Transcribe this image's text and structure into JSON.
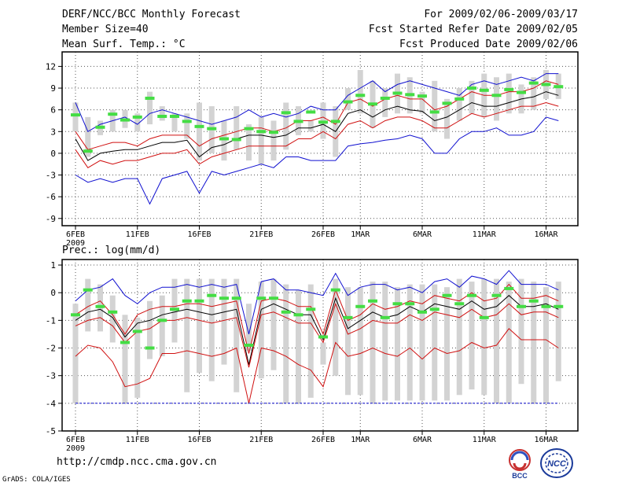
{
  "header": {
    "title": "DERF/NCC/BCC Monthly Forecast",
    "member_size": "Member Size=40",
    "variable": "Mean Surf. Temp.: °C",
    "forecast_for": "For 2009/02/06-2009/03/17",
    "started_refer": "Fcst Started Refer Date 2009/02/05",
    "produced": "Fcst Produced Date 2009/02/06"
  },
  "footer": {
    "url": "http://cmdp.ncc.cma.gov.cn",
    "credit": "GrADS: COLA/IGES"
  },
  "logos": {
    "left": "BCC",
    "right": "NCC"
  },
  "colors": {
    "box": "#d3d3d3",
    "obs": "#44dd44",
    "blue": "#1010d0",
    "red": "#d01010",
    "black": "#000000"
  },
  "chart_data": [
    {
      "type": "line",
      "title": "Mean Surf. Temp.: °C",
      "x_days": 40,
      "xtick_labels": [
        "6FEB",
        "11FEB",
        "16FEB",
        "21FEB",
        "26FEB",
        "1MAR",
        "6MAR",
        "11MAR",
        "16MAR"
      ],
      "xtick_days": [
        0,
        5,
        10,
        15,
        20,
        23,
        28,
        33,
        38
      ],
      "year_label": "2009",
      "ylim": [
        -10,
        14
      ],
      "yticks": [
        -9,
        -6,
        -3,
        0,
        3,
        6,
        9,
        12
      ],
      "ytick_labels": [
        "-9",
        "-6",
        "-3",
        "0",
        "3",
        "6",
        "9",
        "12"
      ],
      "series": [
        {
          "name": "max",
          "color": "blue",
          "values": [
            7.0,
            3.0,
            4.0,
            4.5,
            5.0,
            4.0,
            5.5,
            6.0,
            5.5,
            5.0,
            4.5,
            4.0,
            4.5,
            5.0,
            6.0,
            5.0,
            5.5,
            5.0,
            5.5,
            6.5,
            6.0,
            6.0,
            8.0,
            9.0,
            10.0,
            8.5,
            9.5,
            10.0,
            9.5,
            9.0,
            8.5,
            8.0,
            9.5,
            10.0,
            9.5,
            10.0,
            10.5,
            10.0,
            11.0,
            11.0
          ]
        },
        {
          "name": "upper",
          "color": "red",
          "values": [
            3.0,
            0.5,
            1.0,
            1.5,
            1.5,
            1.0,
            2.0,
            2.5,
            2.5,
            2.5,
            1.0,
            2.0,
            2.5,
            3.0,
            3.5,
            3.5,
            3.0,
            3.5,
            4.5,
            4.5,
            5.0,
            4.0,
            7.0,
            7.5,
            6.5,
            7.5,
            8.0,
            7.5,
            7.5,
            6.0,
            6.5,
            7.5,
            8.5,
            8.0,
            8.0,
            8.5,
            8.5,
            9.0,
            10.0,
            9.5
          ]
        },
        {
          "name": "mean",
          "color": "black",
          "values": [
            2.0,
            -1.0,
            0.0,
            0.3,
            0.5,
            0.5,
            1.0,
            1.5,
            1.5,
            1.8,
            -0.5,
            0.8,
            1.2,
            2.0,
            2.5,
            2.5,
            2.2,
            2.5,
            3.5,
            3.5,
            4.0,
            3.0,
            5.5,
            6.0,
            5.0,
            6.0,
            6.5,
            6.0,
            5.8,
            4.5,
            5.0,
            6.0,
            7.0,
            6.5,
            6.5,
            7.0,
            7.5,
            7.8,
            8.5,
            8.0
          ]
        },
        {
          "name": "lower",
          "color": "red",
          "values": [
            0.5,
            -2.0,
            -1.0,
            -1.5,
            -1.0,
            -1.0,
            -0.5,
            0.0,
            0.0,
            0.5,
            -1.5,
            -0.5,
            0.0,
            0.5,
            1.0,
            1.0,
            1.0,
            1.0,
            2.0,
            2.0,
            3.0,
            2.0,
            4.0,
            4.5,
            3.5,
            4.5,
            5.0,
            5.0,
            4.5,
            3.5,
            3.5,
            4.5,
            5.5,
            5.0,
            5.5,
            6.0,
            6.5,
            6.5,
            7.0,
            6.5
          ]
        },
        {
          "name": "min",
          "color": "blue",
          "values": [
            -3.0,
            -4.0,
            -3.5,
            -4.0,
            -3.5,
            -3.5,
            -7.0,
            -3.5,
            -3.0,
            -2.5,
            -5.5,
            -2.5,
            -3.0,
            -2.5,
            -2.0,
            -1.5,
            -2.0,
            -0.5,
            -0.5,
            -1.0,
            -1.0,
            -1.0,
            1.0,
            1.3,
            1.5,
            1.8,
            2.0,
            2.5,
            2.0,
            0.0,
            0.0,
            2.0,
            3.0,
            3.0,
            3.5,
            2.5,
            2.5,
            3.0,
            5.0,
            4.5
          ]
        }
      ],
      "boxes_low": [
        3.0,
        -0.5,
        2.5,
        3.0,
        3.5,
        3.0,
        4.0,
        4.5,
        3.0,
        2.0,
        -1.0,
        0.0,
        -1.0,
        0.5,
        -1.0,
        -1.5,
        -1.0,
        0.5,
        2.5,
        3.0,
        2.0,
        -0.5,
        6.0,
        5.5,
        3.5,
        5.0,
        5.5,
        5.5,
        5.5,
        3.0,
        2.0,
        4.5,
        5.5,
        5.0,
        4.5,
        5.5,
        5.5,
        6.0,
        7.5,
        7.5
      ],
      "boxes_high": [
        7.0,
        5.0,
        4.5,
        6.0,
        6.0,
        5.5,
        8.5,
        6.5,
        5.5,
        5.5,
        7.0,
        6.5,
        4.5,
        6.5,
        4.0,
        5.0,
        4.5,
        7.0,
        6.5,
        4.5,
        7.0,
        6.5,
        9.0,
        11.5,
        10.0,
        9.0,
        11.0,
        10.5,
        8.5,
        10.0,
        7.5,
        9.0,
        10.0,
        11.0,
        10.5,
        11.0,
        9.5,
        10.5,
        11.5,
        11.0
      ],
      "obs": [
        5.3,
        0.3,
        3.6,
        5.4,
        4.6,
        5.0,
        7.6,
        5.1,
        5.1,
        4.4,
        3.7,
        3.4,
        2.0,
        1.9,
        3.4,
        3.0,
        2.9,
        5.6,
        4.4,
        5.7,
        4.3,
        4.4,
        7.1,
        8.0,
        6.8,
        7.6,
        8.3,
        8.1,
        7.9,
        5.7,
        6.9,
        7.5,
        9.0,
        8.7,
        8.0,
        8.8,
        8.4,
        9.7,
        9.5,
        9.2
      ]
    },
    {
      "type": "line",
      "title": "Prec.: log(mm/d)",
      "x_days": 40,
      "xtick_labels": [
        "6FEB",
        "11FEB",
        "16FEB",
        "21FEB",
        "26FEB",
        "1MAR",
        "6MAR",
        "11MAR",
        "16MAR"
      ],
      "xtick_days": [
        0,
        5,
        10,
        15,
        20,
        23,
        28,
        33,
        38
      ],
      "year_label": "2009",
      "ylim": [
        -5,
        1.2
      ],
      "yticks": [
        -5,
        -4,
        -3,
        -2,
        -1,
        0,
        1
      ],
      "ytick_labels": [
        "-5",
        "-4",
        "-3",
        "-2",
        "-1",
        "0",
        "1"
      ],
      "series": [
        {
          "name": "max",
          "color": "blue",
          "values": [
            -0.3,
            0.1,
            0.2,
            0.5,
            -0.1,
            -0.4,
            0.0,
            0.2,
            0.2,
            0.3,
            0.2,
            0.3,
            0.2,
            0.3,
            -1.5,
            0.4,
            0.5,
            0.1,
            0.1,
            0.0,
            -0.1,
            0.7,
            -0.1,
            0.2,
            0.3,
            0.3,
            0.1,
            0.2,
            0.0,
            0.4,
            0.5,
            0.2,
            0.6,
            0.5,
            0.3,
            0.8,
            0.3,
            0.3,
            0.3,
            0.1
          ]
        },
        {
          "name": "upper",
          "color": "red",
          "values": [
            -0.8,
            -0.5,
            -0.3,
            -0.8,
            -1.5,
            -0.8,
            -0.6,
            -0.5,
            -0.5,
            -0.4,
            -0.4,
            -0.5,
            -0.4,
            -0.3,
            -2.2,
            -0.3,
            -0.2,
            -0.3,
            -0.5,
            -0.5,
            -1.5,
            0.1,
            -1.0,
            -0.8,
            -0.4,
            -0.6,
            -0.5,
            -0.3,
            -0.4,
            -0.1,
            -0.2,
            -0.3,
            0.0,
            -0.3,
            -0.2,
            0.3,
            -0.2,
            -0.2,
            -0.1,
            -0.3
          ]
        },
        {
          "name": "mean",
          "color": "black",
          "values": [
            -1.0,
            -0.7,
            -0.6,
            -0.9,
            -1.6,
            -1.1,
            -1.0,
            -0.8,
            -0.7,
            -0.6,
            -0.7,
            -0.8,
            -0.7,
            -0.6,
            -2.6,
            -0.6,
            -0.4,
            -0.6,
            -0.8,
            -0.8,
            -1.7,
            -0.2,
            -1.3,
            -1.0,
            -0.7,
            -0.9,
            -0.8,
            -0.5,
            -0.7,
            -0.4,
            -0.5,
            -0.6,
            -0.3,
            -0.6,
            -0.5,
            -0.1,
            -0.5,
            -0.5,
            -0.4,
            -0.6
          ]
        },
        {
          "name": "lower",
          "color": "red",
          "values": [
            -1.2,
            -1.0,
            -0.9,
            -1.2,
            -1.8,
            -1.4,
            -1.3,
            -1.0,
            -1.0,
            -0.9,
            -1.0,
            -1.1,
            -1.0,
            -0.9,
            -2.7,
            -0.8,
            -0.7,
            -0.9,
            -1.1,
            -1.1,
            -1.8,
            -0.4,
            -1.5,
            -1.3,
            -1.0,
            -1.1,
            -1.1,
            -0.8,
            -1.0,
            -0.7,
            -0.8,
            -0.9,
            -0.6,
            -0.9,
            -0.8,
            -0.4,
            -0.8,
            -0.7,
            -0.7,
            -0.9
          ]
        },
        {
          "name": "min",
          "color": "red",
          "values": [
            -2.3,
            -1.9,
            -2.0,
            -2.5,
            -3.4,
            -3.3,
            -3.1,
            -2.2,
            -2.2,
            -2.1,
            -2.2,
            -2.3,
            -2.2,
            -2.0,
            -4.0,
            -2.0,
            -2.1,
            -2.3,
            -2.6,
            -2.8,
            -3.4,
            -1.8,
            -2.3,
            -2.2,
            -2.0,
            -2.2,
            -2.3,
            -2.0,
            -2.4,
            -2.0,
            -2.2,
            -2.1,
            -1.8,
            -2.0,
            -1.9,
            -1.3,
            -1.7,
            -1.7,
            -1.7,
            -2.0
          ]
        },
        {
          "name": "floor",
          "color": "blue",
          "dashed": true,
          "values": [
            -4,
            -4,
            -4,
            -4,
            -4,
            -4,
            -4,
            -4,
            -4,
            -4,
            -4,
            -4,
            -4,
            -4,
            -4,
            -4,
            -4,
            -4,
            -4,
            -4,
            -4,
            -4,
            -4,
            -4,
            -4,
            -4,
            -4,
            -4,
            -4,
            -4,
            -4,
            -4,
            -4,
            -4,
            -4,
            -4,
            -4,
            -4,
            -4,
            -4
          ]
        }
      ],
      "boxes_low": [
        -4.0,
        -1.4,
        -1.4,
        -1.8,
        -4.0,
        -3.8,
        -2.4,
        -2.3,
        -1.8,
        -3.6,
        -2.9,
        -3.2,
        -2.6,
        -3.6,
        -2.1,
        -3.1,
        -2.8,
        -4.0,
        -4.0,
        -3.8,
        -2.6,
        -3.0,
        -3.7,
        -3.7,
        -4.0,
        -3.9,
        -3.9,
        -3.9,
        -3.9,
        -3.9,
        -3.9,
        -3.7,
        -3.5,
        -3.7,
        -4.0,
        -4.0,
        -3.3,
        -4.0,
        -4.0,
        -3.2
      ],
      "boxes_high": [
        -0.4,
        0.5,
        0.3,
        -0.1,
        -0.8,
        -0.9,
        -0.3,
        -0.1,
        0.5,
        0.5,
        0.5,
        0.5,
        0.5,
        0.5,
        -0.4,
        0.4,
        0.5,
        0.3,
        0.1,
        0.3,
        -1.8,
        0.5,
        0.2,
        0.2,
        0.4,
        0.4,
        0.2,
        0.3,
        0.3,
        0.3,
        0.2,
        0.5,
        0.4,
        0.5,
        0.5,
        0.4,
        0.5,
        0.4,
        0.2,
        0.4
      ],
      "obs": [
        -0.8,
        0.1,
        -0.5,
        -0.7,
        -1.8,
        -1.4,
        -2.0,
        -1.0,
        -0.6,
        -0.3,
        -0.3,
        -0.1,
        -0.2,
        -0.2,
        -1.9,
        -0.2,
        -0.2,
        -0.7,
        -0.8,
        -0.6,
        -1.6,
        0.1,
        -0.9,
        -0.5,
        -0.3,
        -0.9,
        -0.4,
        -0.4,
        -0.7,
        -0.6,
        -0.1,
        -0.4,
        -0.1,
        -0.9,
        -0.1,
        0.15,
        -0.5,
        -0.3,
        -0.5,
        -0.5
      ]
    }
  ]
}
